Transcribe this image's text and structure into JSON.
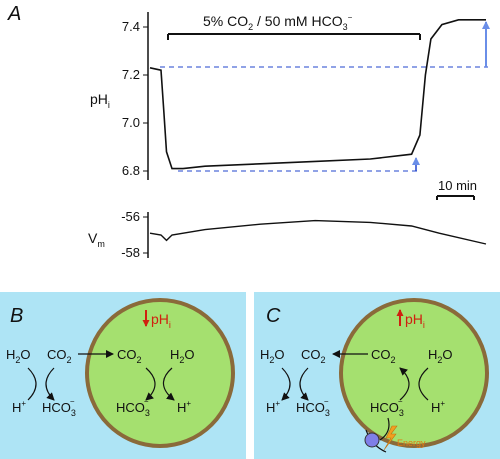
{
  "panelA": {
    "letter": "A",
    "bar_label_parts": {
      "a": "5% CO",
      "b": "2",
      "c": " / 50 mM HCO",
      "d": "3",
      "e": "−"
    },
    "ph_label": {
      "main": "pH",
      "sub": "i"
    },
    "vm_label": {
      "main": "V",
      "sub": "m"
    },
    "ph_ticks": [
      "7.4",
      "7.2",
      "7.0",
      "6.8"
    ],
    "vm_ticks": [
      "-56",
      "-58"
    ],
    "scale_bar": "10 min"
  },
  "chart_data": {
    "type": "line",
    "title": "",
    "series": [
      {
        "x": [
          0,
          4,
          5,
          6,
          8,
          12,
          20,
          40,
          60,
          80,
          95,
          98,
          100,
          102,
          106,
          112,
          118,
          122
        ],
        "y": [
          7.23,
          7.22,
          7.05,
          6.88,
          6.81,
          6.81,
          6.82,
          6.83,
          6.84,
          6.85,
          6.87,
          6.95,
          7.2,
          7.35,
          7.41,
          7.43,
          7.43,
          7.43
        ]
      },
      {
        "x": [
          0,
          4,
          6,
          8,
          20,
          40,
          60,
          80,
          95,
          105,
          122
        ],
        "y": [
          -56.9,
          -57.0,
          -57.3,
          -57.0,
          -56.7,
          -56.4,
          -56.2,
          -56.3,
          -56.5,
          -56.9,
          -57.5
        ]
      }
    ],
    "ylim_ph": [
      6.72,
      7.48
    ],
    "yticks_ph": [
      6.8,
      7.0,
      7.2,
      7.4
    ],
    "ylim_vm": [
      -58.2,
      -55.6
    ],
    "yticks_vm": [
      -58,
      -56
    ],
    "grid": false
  },
  "panelB": {
    "letter": "B",
    "ph_label": {
      "main": "pH",
      "sub": "i"
    },
    "outside": {
      "h2o": "H",
      "h2o_sub": "2",
      "h2o_o": "O",
      "co2": "CO",
      "co2_sub": "2",
      "h": "H",
      "h_sup": "+",
      "hco3": "HCO",
      "hco3_sub": "3",
      "hco3_sup": "−"
    },
    "inside": {
      "co2": "CO",
      "co2_sub": "2",
      "h2o": "H",
      "h2o_sub": "2",
      "h2o_o": "O",
      "hco3": "HCO",
      "hco3_sub": "3",
      "hco3_sup": "−",
      "h": "H",
      "h_sup": "+"
    }
  },
  "panelC": {
    "letter": "C",
    "ph_label": {
      "main": "pH",
      "sub": "i"
    },
    "energy": "Energy",
    "outside": {
      "h2o": "H",
      "h2o_sub": "2",
      "h2o_o": "O",
      "co2": "CO",
      "co2_sub": "2",
      "h": "H",
      "h_sup": "+",
      "hco3": "HCO",
      "hco3_sub": "3",
      "hco3_sup": "−"
    },
    "inside": {
      "co2": "CO",
      "co2_sub": "2",
      "h2o": "H",
      "h2o_sub": "2",
      "h2o_o": "O",
      "hco3": "HCO",
      "hco3_sub": "3",
      "hco3_sup": "−",
      "h": "H",
      "h_sup": "+"
    }
  },
  "colors": {
    "panel_bg": "#aee4f5",
    "cell_fill": "#a5e06f",
    "cell_border": "#8a6a3a",
    "arrow_red": "#d02010",
    "dash_blue": "#2244cc",
    "arrow_blue": "#6a8ee8"
  }
}
